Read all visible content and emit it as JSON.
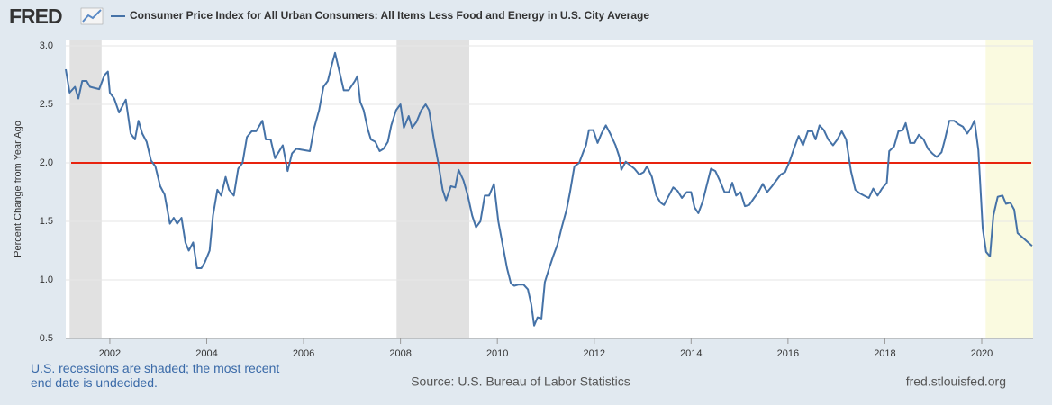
{
  "logo": "FRED",
  "chart_data": {
    "type": "line",
    "series": [
      {
        "name": "Consumer Price Index for All Urban Consumers: All Items Less Food and Energy in U.S. City Average",
        "color": "#4572a7",
        "x": [
          2001.09,
          2001.17,
          2001.28,
          2001.35,
          2001.43,
          2001.52,
          2001.59,
          2001.78,
          2001.89,
          2001.96,
          2002.0,
          2002.09,
          2002.19,
          2002.33,
          2002.43,
          2002.52,
          2002.59,
          2002.67,
          2002.76,
          2002.85,
          2002.94,
          2003.04,
          2003.13,
          2003.24,
          2003.32,
          2003.39,
          2003.48,
          2003.56,
          2003.63,
          2003.72,
          2003.8,
          2003.89,
          2003.96,
          2004.06,
          2004.13,
          2004.22,
          2004.3,
          2004.39,
          2004.46,
          2004.56,
          2004.65,
          2004.74,
          2004.83,
          2004.93,
          2005.02,
          2005.15,
          2005.22,
          2005.32,
          2005.41,
          2005.57,
          2005.67,
          2005.76,
          2005.85,
          2006.13,
          2006.22,
          2006.32,
          2006.41,
          2006.5,
          2006.59,
          2006.65,
          2006.74,
          2006.83,
          2006.93,
          2007.06,
          2007.11,
          2007.17,
          2007.24,
          2007.33,
          2007.39,
          2007.48,
          2007.57,
          2007.65,
          2007.74,
          2007.81,
          2007.91,
          2008.0,
          2008.07,
          2008.17,
          2008.24,
          2008.33,
          2008.43,
          2008.52,
          2008.59,
          2008.69,
          2008.78,
          2008.87,
          2008.94,
          2009.04,
          2009.13,
          2009.2,
          2009.3,
          2009.39,
          2009.48,
          2009.56,
          2009.65,
          2009.74,
          2009.83,
          2009.93,
          2010.02,
          2010.11,
          2010.2,
          2010.28,
          2010.35,
          2010.44,
          2010.54,
          2010.63,
          2010.7,
          2010.76,
          2010.83,
          2010.91,
          2010.98,
          2011.07,
          2011.15,
          2011.24,
          2011.33,
          2011.43,
          2011.5,
          2011.59,
          2011.69,
          2011.78,
          2011.83,
          2011.89,
          2011.98,
          2012.07,
          2012.15,
          2012.24,
          2012.33,
          2012.44,
          2012.52,
          2012.56,
          2012.65,
          2012.74,
          2012.83,
          2012.93,
          2013.02,
          2013.09,
          2013.19,
          2013.28,
          2013.37,
          2013.44,
          2013.54,
          2013.63,
          2013.72,
          2013.81,
          2013.91,
          2014.0,
          2014.07,
          2014.15,
          2014.24,
          2014.33,
          2014.41,
          2014.5,
          2014.59,
          2014.69,
          2014.78,
          2014.85,
          2014.93,
          2015.02,
          2015.11,
          2015.2,
          2015.3,
          2015.39,
          2015.48,
          2015.57,
          2015.67,
          2015.76,
          2015.85,
          2015.94,
          2016.04,
          2016.13,
          2016.22,
          2016.31,
          2016.41,
          2016.5,
          2016.57,
          2016.65,
          2016.74,
          2016.83,
          2016.93,
          2017.02,
          2017.11,
          2017.2,
          2017.3,
          2017.39,
          2017.48,
          2017.57,
          2017.67,
          2017.76,
          2017.85,
          2017.94,
          2018.04,
          2018.09,
          2018.19,
          2018.28,
          2018.37,
          2018.43,
          2018.52,
          2018.61,
          2018.7,
          2018.8,
          2018.89,
          2018.98,
          2019.07,
          2019.17,
          2019.24,
          2019.33,
          2019.43,
          2019.52,
          2019.61,
          2019.7,
          2019.78,
          2019.85,
          2019.93,
          2020.02,
          2020.09,
          2020.17,
          2020.24,
          2020.33,
          2020.43,
          2020.5,
          2020.59,
          2020.67,
          2020.74,
          2021.04
        ],
        "values": [
          2.8,
          2.6,
          2.65,
          2.55,
          2.7,
          2.7,
          2.65,
          2.63,
          2.75,
          2.78,
          2.6,
          2.55,
          2.43,
          2.54,
          2.25,
          2.2,
          2.36,
          2.25,
          2.18,
          2.02,
          1.97,
          1.8,
          1.73,
          1.48,
          1.53,
          1.48,
          1.53,
          1.32,
          1.25,
          1.32,
          1.1,
          1.1,
          1.15,
          1.25,
          1.55,
          1.77,
          1.72,
          1.88,
          1.77,
          1.72,
          1.95,
          2.0,
          2.22,
          2.27,
          2.27,
          2.36,
          2.2,
          2.2,
          2.04,
          2.15,
          1.93,
          2.08,
          2.12,
          2.1,
          2.3,
          2.45,
          2.65,
          2.7,
          2.85,
          2.94,
          2.78,
          2.62,
          2.62,
          2.7,
          2.74,
          2.52,
          2.45,
          2.28,
          2.2,
          2.18,
          2.1,
          2.12,
          2.18,
          2.32,
          2.45,
          2.5,
          2.3,
          2.4,
          2.3,
          2.35,
          2.45,
          2.5,
          2.45,
          2.2,
          2.0,
          1.77,
          1.68,
          1.8,
          1.79,
          1.94,
          1.85,
          1.72,
          1.55,
          1.45,
          1.5,
          1.72,
          1.72,
          1.82,
          1.5,
          1.3,
          1.1,
          0.97,
          0.95,
          0.96,
          0.96,
          0.92,
          0.79,
          0.61,
          0.68,
          0.67,
          0.98,
          1.1,
          1.2,
          1.3,
          1.45,
          1.6,
          1.75,
          1.97,
          2.0,
          2.1,
          2.15,
          2.28,
          2.28,
          2.17,
          2.25,
          2.32,
          2.25,
          2.15,
          2.05,
          1.94,
          2.01,
          1.98,
          1.95,
          1.9,
          1.92,
          1.97,
          1.88,
          1.72,
          1.66,
          1.64,
          1.72,
          1.79,
          1.76,
          1.7,
          1.75,
          1.75,
          1.62,
          1.57,
          1.67,
          1.82,
          1.95,
          1.93,
          1.85,
          1.75,
          1.75,
          1.83,
          1.72,
          1.75,
          1.63,
          1.64,
          1.7,
          1.75,
          1.82,
          1.75,
          1.8,
          1.85,
          1.9,
          1.92,
          2.02,
          2.13,
          2.23,
          2.15,
          2.27,
          2.27,
          2.2,
          2.32,
          2.28,
          2.2,
          2.15,
          2.2,
          2.27,
          2.2,
          1.93,
          1.77,
          1.74,
          1.72,
          1.7,
          1.78,
          1.72,
          1.78,
          1.83,
          2.1,
          2.14,
          2.27,
          2.28,
          2.34,
          2.17,
          2.17,
          2.24,
          2.2,
          2.12,
          2.08,
          2.05,
          2.09,
          2.2,
          2.36,
          2.36,
          2.33,
          2.31,
          2.25,
          2.3,
          2.36,
          2.11,
          1.44,
          1.24,
          1.2,
          1.55,
          1.71,
          1.72,
          1.65,
          1.66,
          1.6,
          1.4,
          1.29
        ]
      }
    ],
    "recessions": [
      {
        "start": 2001.17,
        "end": 2001.83,
        "color": "#e1e1e1"
      },
      {
        "start": 2007.92,
        "end": 2009.42,
        "color": "#e1e1e1"
      },
      {
        "start": 2020.08,
        "end": 2021.06,
        "color": "#fafae0"
      }
    ],
    "reference_line": {
      "value": 2,
      "color": "#e8230e"
    },
    "xlim": [
      2001.09,
      2021.06
    ],
    "xticks": [
      2002,
      2004,
      2006,
      2008,
      2010,
      2012,
      2014,
      2016,
      2018,
      2020
    ],
    "ylim": [
      0.5,
      3
    ],
    "yticks": [
      0.5,
      {
        "value": 1,
        "label": "1.0"
      },
      1.5,
      {
        "value": 2,
        "label": "2.0"
      },
      2.5,
      {
        "value": 3,
        "label": "3.0"
      }
    ],
    "ylabel": "Percent Change from Year Ago",
    "grid": true,
    "note": "U.S. recessions are shaded; the most recent end date is undecided.",
    "source": "Source: U.S. Bureau of Labor Statistics",
    "url": "fred.stlouisfed.org"
  }
}
